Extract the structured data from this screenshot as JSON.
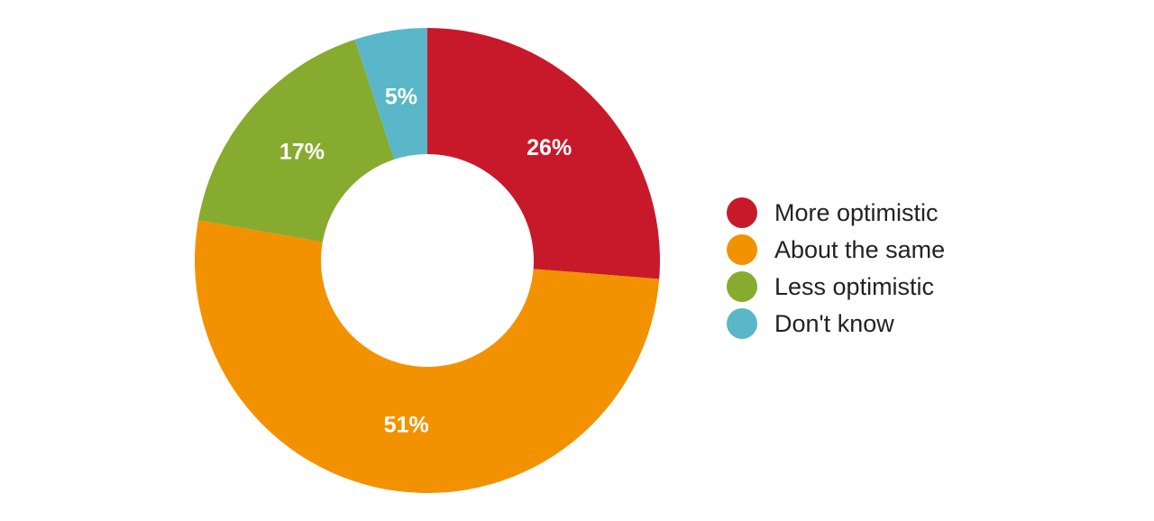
{
  "chart_data": {
    "type": "pie",
    "donut": true,
    "title": "",
    "categories": [
      "More optimistic",
      "About the same",
      "Less optimistic",
      "Don't know"
    ],
    "values": [
      26,
      51,
      17,
      5
    ],
    "value_labels": [
      "26%",
      "51%",
      "17%",
      "5%"
    ],
    "unit": "%",
    "colors": [
      "#c8192b",
      "#f39200",
      "#86ab2f",
      "#59b7c9"
    ],
    "legend_position": "right",
    "start": "top",
    "direction": "clockwise"
  }
}
